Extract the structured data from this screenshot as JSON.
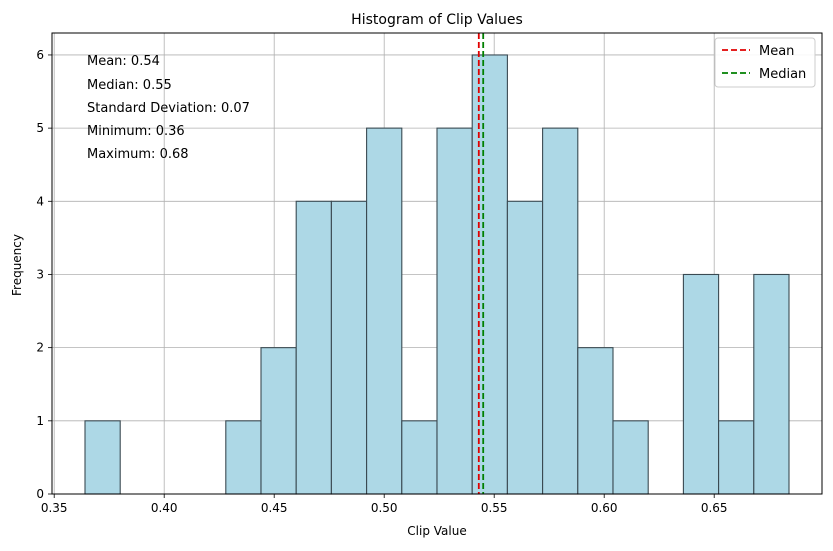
{
  "chart_data": {
    "type": "bar",
    "title": "Histogram of Clip Values",
    "xlabel": "Clip Value",
    "ylabel": "Frequency",
    "xlim": [
      0.349,
      0.699
    ],
    "ylim": [
      0,
      6.3
    ],
    "x_ticks": [
      0.35,
      0.4,
      0.45,
      0.5,
      0.55,
      0.6,
      0.65
    ],
    "x_tick_labels": [
      "0.35",
      "0.40",
      "0.45",
      "0.50",
      "0.55",
      "0.60",
      "0.65"
    ],
    "y_ticks": [
      0,
      1,
      2,
      3,
      4,
      5,
      6
    ],
    "y_tick_labels": [
      "0",
      "1",
      "2",
      "3",
      "4",
      "5",
      "6"
    ],
    "grid": true,
    "legend_placement": "top-right",
    "bin_edges": [
      0.364,
      0.38,
      0.396,
      0.412,
      0.428,
      0.444,
      0.46,
      0.476,
      0.492,
      0.508,
      0.524,
      0.54,
      0.556,
      0.572,
      0.588,
      0.604,
      0.62,
      0.636,
      0.652,
      0.668,
      0.684
    ],
    "counts": [
      1,
      0,
      0,
      0,
      1,
      2,
      4,
      4,
      5,
      1,
      5,
      6,
      4,
      5,
      2,
      1,
      0,
      3,
      1,
      3
    ],
    "bar_color": "#add8e6",
    "edge_color": "#3a4a52",
    "mean_line": {
      "value": 0.543,
      "color": "#e00000",
      "label": "Mean"
    },
    "median_line": {
      "value": 0.545,
      "color": "#008000",
      "label": "Median"
    },
    "stats": [
      "Mean: 0.54",
      "Median: 0.55",
      "Standard Deviation: 0.07",
      "Minimum: 0.36",
      "Maximum: 0.68"
    ]
  }
}
